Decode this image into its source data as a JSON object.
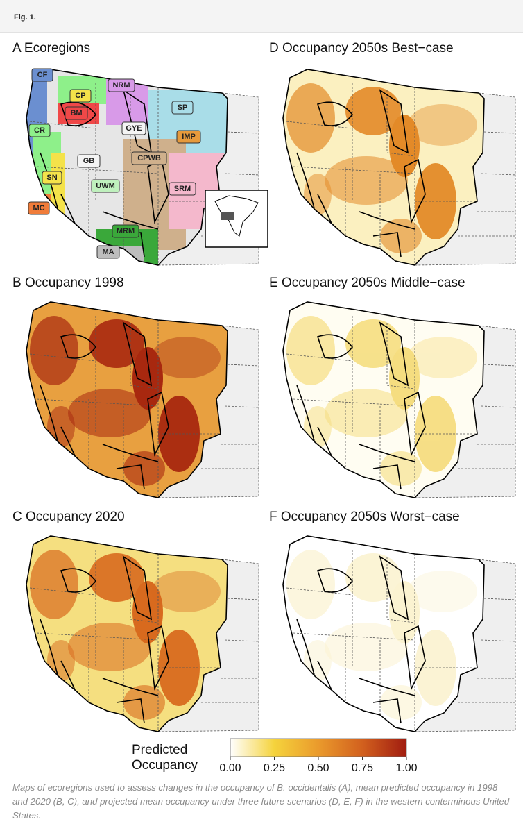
{
  "header": {
    "label": "Fig. 1."
  },
  "panels": [
    {
      "title": "A Ecoregions",
      "labels": [
        "CF",
        "CP",
        "NRM",
        "BM",
        "SP",
        "GYE",
        "IMP",
        "CR",
        "GB",
        "CPWB",
        "SN",
        "UWM",
        "SRM",
        "MC",
        "MRM",
        "MA"
      ]
    },
    {
      "title": "B Occupancy 1998"
    },
    {
      "title": "C Occupancy 2020"
    },
    {
      "title": "D Occupancy 2050s Best−case"
    },
    {
      "title": "E Occupancy 2050s Middle−case"
    },
    {
      "title": "F Occupancy 2050s Worst−case"
    }
  ],
  "legend": {
    "title": [
      "Predicted",
      "Occupancy"
    ],
    "ticks": [
      {
        "value": 0,
        "label": "0.00"
      },
      {
        "value": 0.25,
        "label": "0.25"
      },
      {
        "value": 0.5,
        "label": "0.50"
      },
      {
        "value": 0.75,
        "label": "0.75"
      },
      {
        "value": 1,
        "label": "1.00"
      }
    ]
  },
  "caption": "Maps of ecoregions used to assess changes in the occupancy of B. occidentalis (A), mean predicted occupancy in 1998 and 2020 (B, C), and projected mean occupancy under three future scenarios (D, E, F) in the western conterminous United States."
}
